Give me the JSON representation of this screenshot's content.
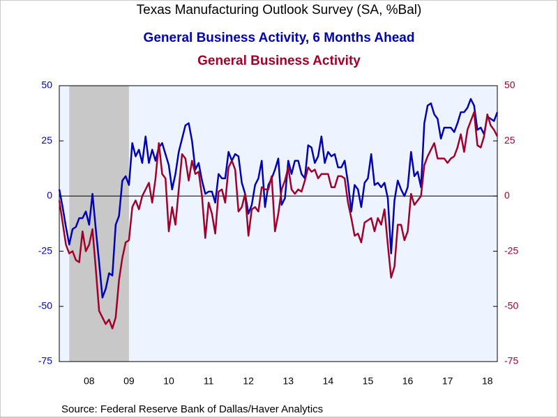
{
  "chart_data": {
    "type": "line",
    "title": "Texas Manufacturing Outlook Survey (SA, %Bal)",
    "subtitle": "General Business Activity, 6 Months Ahead",
    "subtitle2": "General Business Activity",
    "source": "Source:  Federal Reserve Bank of Dallas/Haver Analytics",
    "categories": [
      null,
      null,
      null,
      null,
      null,
      null,
      null,
      null,
      null,
      "08",
      null,
      null,
      null,
      null,
      null,
      null,
      null,
      null,
      null,
      null,
      null,
      "09",
      null,
      null,
      null,
      null,
      null,
      null,
      null,
      null,
      null,
      null,
      null,
      "10",
      null,
      null,
      null,
      null,
      null,
      null,
      null,
      null,
      null,
      null,
      null,
      "11",
      null,
      null,
      null,
      null,
      null,
      null,
      null,
      null,
      null,
      null,
      null,
      "12",
      null,
      null,
      null,
      null,
      null,
      null,
      null,
      null,
      null,
      null,
      null,
      "13",
      null,
      null,
      null,
      null,
      null,
      null,
      null,
      null,
      null,
      null,
      null,
      "14",
      null,
      null,
      null,
      null,
      null,
      null,
      null,
      null,
      null,
      null,
      null,
      "15",
      null,
      null,
      null,
      null,
      null,
      null,
      null,
      null,
      null,
      null,
      null,
      "16",
      null,
      null,
      null,
      null,
      null,
      null,
      null,
      null,
      null,
      null,
      null,
      "17",
      null,
      null,
      null,
      null,
      null,
      null,
      null,
      null,
      null,
      null,
      null,
      "18",
      null,
      null,
      null
    ],
    "series": [
      {
        "name": "General Business Activity, 6 Months Ahead",
        "color": "#0000b4",
        "axis": "y",
        "values": [
          3,
          -5,
          -14,
          -22,
          -15,
          -14,
          -10,
          -10,
          -7,
          -13,
          1,
          -15,
          -30,
          -46,
          -42,
          -35,
          -36,
          -13,
          -9,
          7,
          9,
          5,
          24,
          18,
          21,
          15,
          27,
          15,
          21,
          16,
          22,
          24,
          19,
          14,
          3,
          10,
          20,
          26,
          32,
          33,
          25,
          12,
          15,
          7,
          1,
          2,
          2,
          -3,
          10,
          8,
          8,
          20,
          16,
          19,
          18,
          6,
          1,
          -8,
          -4,
          5,
          8,
          16,
          -5,
          5,
          8,
          12,
          17,
          -4,
          -1,
          16,
          10,
          16,
          16,
          10,
          8,
          23,
          22,
          15,
          18,
          27,
          15,
          20,
          18,
          19,
          13,
          13,
          16,
          6,
          -7,
          5,
          3,
          -5,
          6,
          8,
          19,
          5,
          6,
          4,
          6,
          -1,
          -26,
          -2,
          7,
          3,
          0,
          4,
          20,
          9,
          11,
          4,
          33,
          41,
          42,
          37,
          35,
          26,
          31,
          31,
          31,
          29,
          33,
          38,
          38,
          40,
          44,
          41,
          30,
          31,
          28,
          36,
          35,
          34,
          38
        ]
      },
      {
        "name": "General Business Activity",
        "color": "#a0002a",
        "axis": "y2",
        "values": [
          -2,
          -12,
          -22,
          -26,
          -25,
          -29,
          -30,
          -16,
          -25,
          -22,
          -15,
          -33,
          -52,
          -55,
          -58,
          -56,
          -60,
          -55,
          -38,
          -28,
          -21,
          -20,
          -5,
          -2,
          -6,
          0,
          3,
          6,
          -3,
          8,
          24,
          10,
          8,
          -16,
          -5,
          -13,
          3,
          19,
          17,
          7,
          16,
          10,
          11,
          0,
          -19,
          -3,
          -8,
          -17,
          2,
          3,
          -3,
          13,
          16,
          12,
          -7,
          -5,
          1,
          -18,
          -6,
          -5,
          -7,
          4,
          3,
          3,
          9,
          -16,
          -8,
          3,
          7,
          13,
          3,
          1,
          3,
          2,
          7,
          13,
          11,
          12,
          8,
          10,
          10,
          10,
          4,
          4,
          9,
          9,
          8,
          -3,
          -10,
          -18,
          -17,
          -21,
          -12,
          -11,
          -10,
          -16,
          -10,
          -13,
          -6,
          -22,
          -37,
          -32,
          -13,
          -13,
          -20,
          -16,
          1,
          -4,
          -2,
          0,
          14,
          18,
          21,
          24,
          17,
          17,
          17,
          15,
          17,
          18,
          22,
          28,
          20,
          30,
          34,
          38,
          23,
          22,
          27,
          37,
          32,
          30,
          27
        ]
      }
    ],
    "ylim": [
      -75,
      50
    ],
    "yticks": [
      -75,
      -50,
      -25,
      0,
      25,
      50
    ],
    "y2lim": [
      -75,
      50
    ],
    "y2ticks": [
      -75,
      -50,
      -25,
      0,
      25,
      50
    ],
    "zero_line": true,
    "shade": {
      "start": 3,
      "end": 21,
      "color": "#c8c8c8"
    },
    "plot_background": "#eef4ff"
  }
}
